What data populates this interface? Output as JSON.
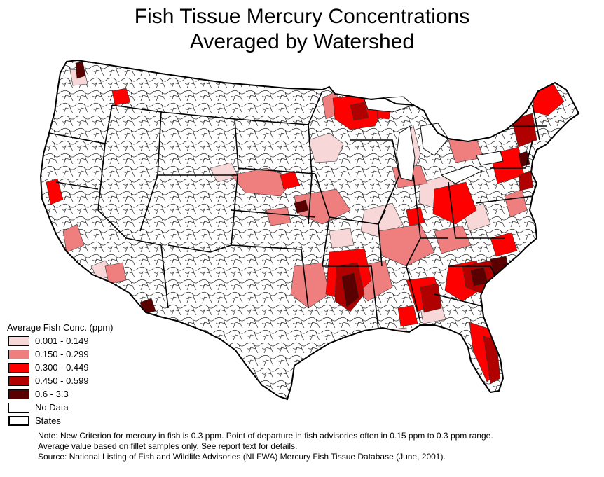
{
  "title": {
    "line1": "Fish Tissue Mercury Concentrations",
    "line2": "Averaged by Watershed"
  },
  "legend": {
    "title": "Average Fish Conc. (ppm)",
    "items": [
      {
        "label": "0.001 - 0.149",
        "color": "#f7d7d7"
      },
      {
        "label": "0.150 - 0.299",
        "color": "#ef7f7f"
      },
      {
        "label": "0.300 - 0.449",
        "color": "#ff0000"
      },
      {
        "label": "0.450 - 0.599",
        "color": "#b00000"
      },
      {
        "label": "0.6 - 3.3",
        "color": "#5a0000"
      },
      {
        "label": "No Data",
        "color": "#ffffff"
      },
      {
        "label": "States",
        "color": "#ffffff"
      }
    ]
  },
  "note": {
    "line1": "Note: New Criterion for mercury in fish is 0.3 ppm. Point of departure in fish advisories often in 0.15 ppm to 0.3 ppm range.",
    "line2": "Average value based on fillet samples only.  See report text for details.",
    "line3": "Source:  National Listing of Fish and Wildlife Advisories (NLFWA) Mercury Fish Tissue Database (June, 2001)."
  }
}
